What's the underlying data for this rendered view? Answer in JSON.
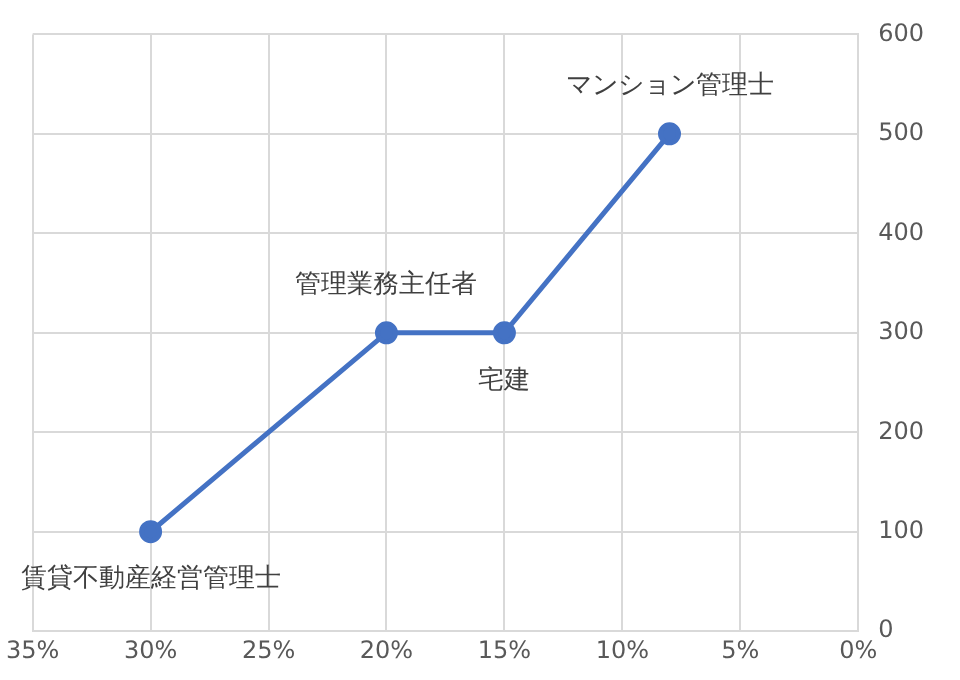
{
  "chart_data": {
    "type": "line",
    "x": [
      30,
      20,
      15,
      8
    ],
    "series": [
      {
        "color": "#4472c4",
        "values": [
          100,
          300,
          300,
          500
        ]
      }
    ],
    "xlim": [
      35,
      0
    ],
    "xticks": [
      {
        "value": 35,
        "label": "35%"
      },
      {
        "value": 30,
        "label": "30%"
      },
      {
        "value": 25,
        "label": "25%"
      },
      {
        "value": 20,
        "label": "20%"
      },
      {
        "value": 15,
        "label": "15%"
      },
      {
        "value": 10,
        "label": "10%"
      },
      {
        "value": 5,
        "label": "5%"
      },
      {
        "value": 0,
        "label": "0%"
      }
    ],
    "ylim": [
      0,
      600
    ],
    "yticks": [
      0,
      100,
      200,
      300,
      400,
      500,
      600
    ],
    "grid": true,
    "legend": false,
    "marker": "circle",
    "line_style": "solid",
    "annotations": [
      {
        "text": "賃貸不動産経営管理士",
        "x": 30,
        "y": 100
      },
      {
        "text": "管理業務主任者",
        "x": 20,
        "y": 300
      },
      {
        "text": "宅建",
        "x": 15,
        "y": 300
      },
      {
        "text": "マンション管理士",
        "x": 8,
        "y": 500
      }
    ]
  }
}
